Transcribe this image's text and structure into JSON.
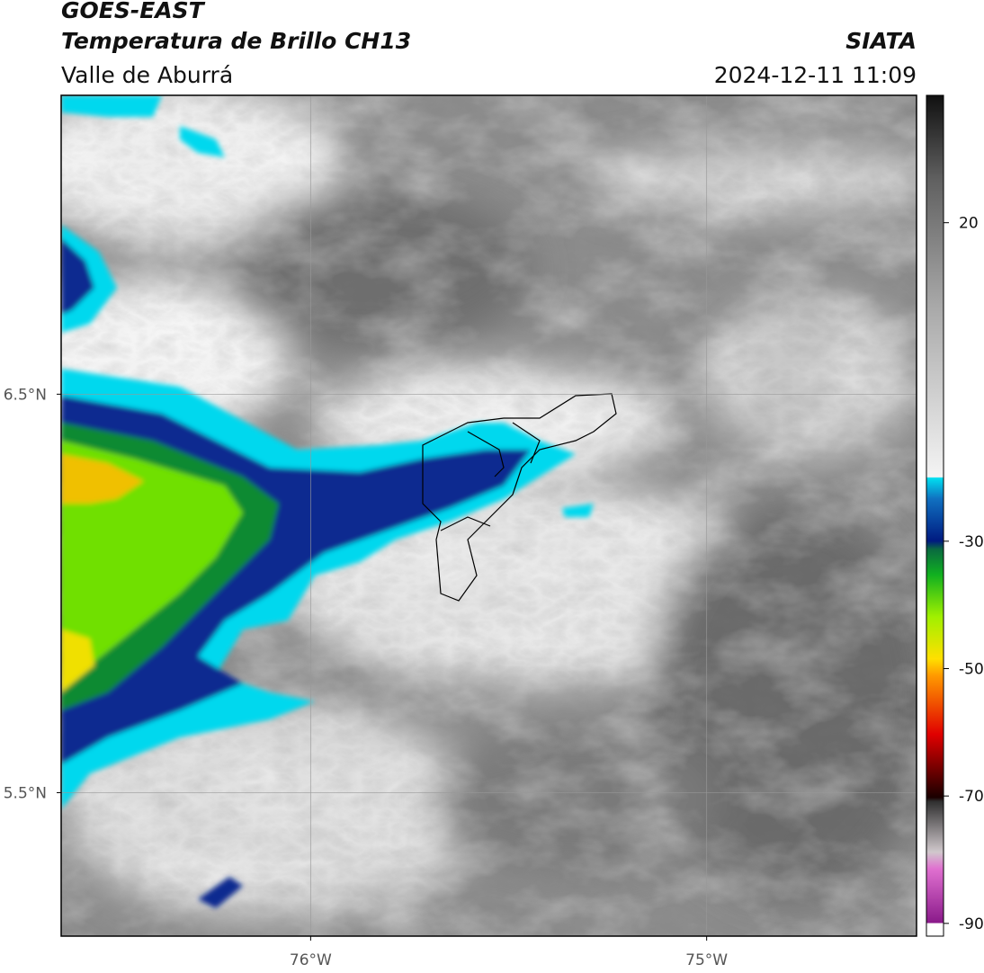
{
  "header": {
    "satellite": "GOES-EAST",
    "product": "Temperatura de Brillo CH13",
    "region": "Valle de Aburrá",
    "source": "SIATA",
    "datetime": "2024-12-11 11:09"
  },
  "map": {
    "xlim": [
      -76.63,
      -74.47
    ],
    "ylim": [
      5.14,
      7.25
    ],
    "xticks": [
      {
        "value": -76,
        "label": "76°W"
      },
      {
        "value": -75,
        "label": "75°W"
      }
    ],
    "yticks": [
      {
        "value": 5.5,
        "label": "5.5°N"
      },
      {
        "value": 6.5,
        "label": "6.5°N"
      }
    ],
    "grid": true
  },
  "colorbar": {
    "lim": [
      -92,
      40
    ],
    "ticks": [
      20,
      -30,
      -50,
      -70,
      -90
    ]
  }
}
